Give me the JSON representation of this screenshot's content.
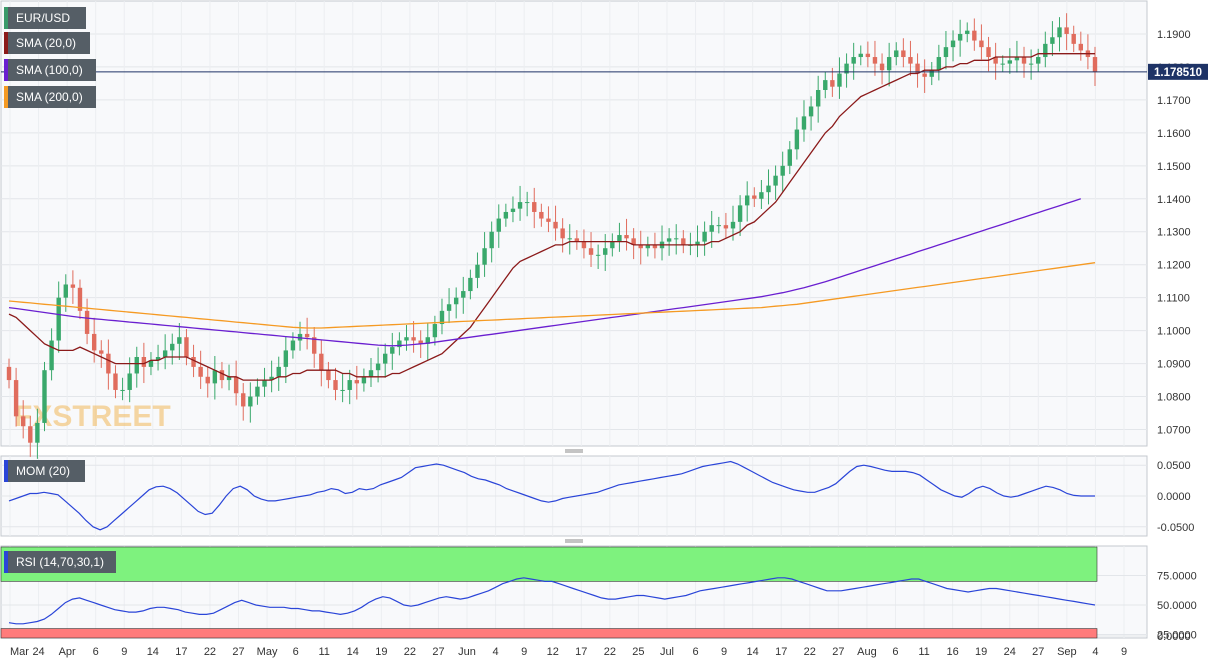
{
  "watermark": "FXSTREET",
  "last_price": "1.178510",
  "colors": {
    "up": "#39a86b",
    "down": "#e06c5d",
    "sma20": "#8b1a1a",
    "sma100": "#6a1fd0",
    "sma200": "#f59a23",
    "mom": "#2a45d8",
    "rsi": "#2a45d8",
    "overbought": "#7ef27e",
    "oversold": "#ff7b7b",
    "price_line": "#1e3366"
  },
  "legend": {
    "pair": "EUR/USD",
    "sma20": "SMA (20,0)",
    "sma100": "SMA (100,0)",
    "sma200": "SMA (200,0)",
    "mom": "MOM (20)",
    "rsi": "RSI (14,70,30,1)"
  },
  "chart_data": [
    {
      "type": "candlestick",
      "title": "EUR/USD",
      "ylim": [
        1.065,
        1.2
      ],
      "y_ticks": [
        "1.0700",
        "1.0800",
        "1.0900",
        "1.1000",
        "1.1100",
        "1.1200",
        "1.1300",
        "1.1400",
        "1.1500",
        "1.1600",
        "1.1700",
        "1.1800",
        "1.1900"
      ],
      "x_ticks": [
        "Mar",
        "24",
        "Apr",
        "6",
        "9",
        "14",
        "17",
        "22",
        "27",
        "May",
        "6",
        "11",
        "14",
        "19",
        "22",
        "27",
        "Jun",
        "4",
        "9",
        "12",
        "17",
        "22",
        "25",
        "Jul",
        "6",
        "9",
        "14",
        "17",
        "22",
        "27",
        "Aug",
        "6",
        "11",
        "16",
        "19",
        "24",
        "27",
        "Sep",
        "4",
        "9"
      ],
      "last_price": 1.17851,
      "close": [
        1.085,
        1.074,
        1.071,
        1.066,
        1.072,
        1.088,
        1.097,
        1.11,
        1.114,
        1.113,
        1.106,
        1.099,
        1.094,
        1.093,
        1.087,
        1.082,
        1.082,
        1.087,
        1.092,
        1.089,
        1.091,
        1.092,
        1.094,
        1.096,
        1.098,
        1.092,
        1.089,
        1.086,
        1.084,
        1.088,
        1.085,
        1.086,
        1.081,
        1.077,
        1.08,
        1.083,
        1.085,
        1.086,
        1.089,
        1.094,
        1.097,
        1.099,
        1.098,
        1.093,
        1.088,
        1.085,
        1.082,
        1.082,
        1.085,
        1.084,
        1.086,
        1.088,
        1.09,
        1.093,
        1.095,
        1.097,
        1.098,
        1.097,
        1.096,
        1.098,
        1.102,
        1.106,
        1.108,
        1.11,
        1.112,
        1.116,
        1.12,
        1.125,
        1.13,
        1.134,
        1.136,
        1.137,
        1.139,
        1.139,
        1.136,
        1.134,
        1.133,
        1.131,
        1.128,
        1.128,
        1.127,
        1.125,
        1.123,
        1.123,
        1.125,
        1.127,
        1.129,
        1.128,
        1.126,
        1.125,
        1.126,
        1.125,
        1.127,
        1.128,
        1.128,
        1.126,
        1.126,
        1.127,
        1.13,
        1.132,
        1.132,
        1.131,
        1.133,
        1.138,
        1.141,
        1.14,
        1.142,
        1.144,
        1.147,
        1.15,
        1.155,
        1.161,
        1.165,
        1.168,
        1.173,
        1.176,
        1.174,
        1.178,
        1.181,
        1.183,
        1.184,
        1.183,
        1.181,
        1.179,
        1.183,
        1.185,
        1.183,
        1.181,
        1.178,
        1.177,
        1.179,
        1.183,
        1.186,
        1.188,
        1.19,
        1.191,
        1.188,
        1.186,
        1.183,
        1.181,
        1.181,
        1.182,
        1.183,
        1.181,
        1.181,
        1.183,
        1.187,
        1.189,
        1.192,
        1.19,
        1.187,
        1.185,
        1.183,
        1.17851
      ],
      "series": [
        {
          "name": "SMA (20,0)",
          "values": [
            1.105,
            1.104,
            1.102,
            1.1,
            1.098,
            1.096,
            1.095,
            1.094,
            1.094,
            1.094,
            1.095,
            1.094,
            1.093,
            1.092,
            1.091,
            1.09,
            1.09,
            1.09,
            1.09,
            1.09,
            1.091,
            1.091,
            1.092,
            1.092,
            1.092,
            1.092,
            1.091,
            1.09,
            1.089,
            1.088,
            1.087,
            1.086,
            1.086,
            1.085,
            1.085,
            1.085,
            1.085,
            1.085,
            1.086,
            1.086,
            1.087,
            1.087,
            1.088,
            1.088,
            1.088,
            1.088,
            1.088,
            1.087,
            1.087,
            1.086,
            1.086,
            1.086,
            1.086,
            1.086,
            1.087,
            1.087,
            1.088,
            1.089,
            1.09,
            1.091,
            1.092,
            1.093,
            1.095,
            1.097,
            1.099,
            1.101,
            1.104,
            1.107,
            1.11,
            1.113,
            1.116,
            1.119,
            1.121,
            1.122,
            1.123,
            1.124,
            1.125,
            1.126,
            1.126,
            1.127,
            1.127,
            1.127,
            1.127,
            1.127,
            1.127,
            1.127,
            1.127,
            1.127,
            1.126,
            1.126,
            1.126,
            1.126,
            1.126,
            1.126,
            1.126,
            1.126,
            1.126,
            1.126,
            1.126,
            1.127,
            1.127,
            1.128,
            1.129,
            1.13,
            1.132,
            1.133,
            1.135,
            1.137,
            1.139,
            1.142,
            1.145,
            1.148,
            1.151,
            1.154,
            1.157,
            1.16,
            1.162,
            1.165,
            1.167,
            1.169,
            1.171,
            1.172,
            1.173,
            1.174,
            1.175,
            1.176,
            1.177,
            1.178,
            1.178,
            1.179,
            1.179,
            1.179,
            1.18,
            1.18,
            1.181,
            1.181,
            1.182,
            1.182,
            1.182,
            1.183,
            1.183,
            1.183,
            1.183,
            1.183,
            1.183,
            1.184,
            1.184,
            1.184,
            1.184,
            1.184,
            1.184,
            1.184,
            1.184,
            1.184
          ]
        },
        {
          "name": "SMA (100,0)",
          "values": [
            1.107,
            1.1067,
            1.1064,
            1.1061,
            1.1058,
            1.1055,
            1.1052,
            1.1049,
            1.1046,
            1.1043,
            1.104,
            1.1038,
            1.1036,
            1.1034,
            1.1032,
            1.103,
            1.1028,
            1.1026,
            1.1024,
            1.1022,
            1.102,
            1.1018,
            1.1016,
            1.1014,
            1.1012,
            1.101,
            1.1008,
            1.1006,
            1.1004,
            1.1002,
            1.1,
            1.0998,
            1.0996,
            1.0994,
            1.0992,
            1.099,
            1.0988,
            1.0986,
            1.0984,
            1.0982,
            1.098,
            1.0978,
            1.0976,
            1.0974,
            1.0972,
            1.097,
            1.0968,
            1.0966,
            1.0964,
            1.0962,
            1.096,
            1.0958,
            1.0956,
            1.0955,
            1.0954,
            1.0955,
            1.0956,
            1.0958,
            1.096,
            1.0962,
            1.0965,
            1.0968,
            1.0971,
            1.0974,
            1.0977,
            1.098,
            1.0983,
            1.0986,
            1.0989,
            1.0992,
            1.0995,
            1.0998,
            1.1001,
            1.1004,
            1.1007,
            1.101,
            1.1013,
            1.1016,
            1.1019,
            1.1022,
            1.1025,
            1.1028,
            1.1031,
            1.1034,
            1.1037,
            1.104,
            1.1043,
            1.1046,
            1.1049,
            1.1052,
            1.1055,
            1.1058,
            1.1061,
            1.1064,
            1.1067,
            1.107,
            1.1073,
            1.1076,
            1.1079,
            1.1082,
            1.1085,
            1.1088,
            1.1091,
            1.1094,
            1.1097,
            1.11,
            1.1103,
            1.1107,
            1.1111,
            1.1115,
            1.112,
            1.1125,
            1.113,
            1.1136,
            1.1142,
            1.1148,
            1.1155,
            1.1162,
            1.1169,
            1.1176,
            1.1183,
            1.119,
            1.1197,
            1.1204,
            1.1211,
            1.1218,
            1.1225,
            1.1232,
            1.1239,
            1.1246,
            1.1253,
            1.126,
            1.1267,
            1.1274,
            1.1281,
            1.1288,
            1.1295,
            1.1302,
            1.1309,
            1.1316,
            1.1323,
            1.133,
            1.1337,
            1.1344,
            1.1351,
            1.1358,
            1.1365,
            1.1372,
            1.1379,
            1.1386,
            1.1393,
            1.14
          ]
        },
        {
          "name": "SMA (200,0)",
          "values": [
            1.109,
            1.1088,
            1.1086,
            1.1084,
            1.1082,
            1.108,
            1.1078,
            1.1076,
            1.1074,
            1.1072,
            1.107,
            1.1068,
            1.1066,
            1.1064,
            1.1062,
            1.106,
            1.1058,
            1.1056,
            1.1054,
            1.1052,
            1.105,
            1.1048,
            1.1046,
            1.1044,
            1.1042,
            1.104,
            1.1038,
            1.1036,
            1.1034,
            1.1032,
            1.103,
            1.1028,
            1.1026,
            1.1024,
            1.1022,
            1.102,
            1.1018,
            1.1016,
            1.1014,
            1.1012,
            1.101,
            1.1009,
            1.1008,
            1.1008,
            1.1008,
            1.1009,
            1.101,
            1.1011,
            1.1012,
            1.1013,
            1.1014,
            1.1015,
            1.1016,
            1.1017,
            1.1018,
            1.1019,
            1.102,
            1.1021,
            1.1022,
            1.1023,
            1.1024,
            1.1025,
            1.1026,
            1.1027,
            1.1028,
            1.1029,
            1.103,
            1.1031,
            1.1032,
            1.1033,
            1.1034,
            1.1035,
            1.1036,
            1.1037,
            1.1038,
            1.1039,
            1.104,
            1.1041,
            1.1042,
            1.1043,
            1.1044,
            1.1045,
            1.1046,
            1.1047,
            1.1048,
            1.1049,
            1.105,
            1.1051,
            1.1052,
            1.1053,
            1.1054,
            1.1055,
            1.1056,
            1.1057,
            1.1058,
            1.1059,
            1.106,
            1.1061,
            1.1062,
            1.1063,
            1.1064,
            1.1065,
            1.1066,
            1.1067,
            1.1068,
            1.1069,
            1.107,
            1.1072,
            1.1074,
            1.1076,
            1.1078,
            1.108,
            1.1083,
            1.1086,
            1.1089,
            1.1092,
            1.1095,
            1.1098,
            1.1101,
            1.1104,
            1.1107,
            1.111,
            1.1113,
            1.1116,
            1.1119,
            1.1122,
            1.1125,
            1.1128,
            1.1131,
            1.1134,
            1.1137,
            1.114,
            1.1143,
            1.1146,
            1.1149,
            1.1152,
            1.1155,
            1.1158,
            1.1161,
            1.1164,
            1.1167,
            1.117,
            1.1173,
            1.1176,
            1.1179,
            1.1182,
            1.1185,
            1.1188,
            1.1191,
            1.1194,
            1.1197,
            1.12,
            1.1203,
            1.1206
          ]
        }
      ]
    },
    {
      "type": "line",
      "title": "MOM (20)",
      "ylim": [
        -0.065,
        0.065
      ],
      "y_ticks": [
        "0.0500",
        "0.0000",
        "-0.0500"
      ],
      "series": [
        {
          "name": "MOM (20)",
          "values": [
            -0.008,
            -0.004,
            0.0,
            0.004,
            0.004,
            0.006,
            0.004,
            0.002,
            -0.008,
            -0.018,
            -0.028,
            -0.04,
            -0.05,
            -0.055,
            -0.05,
            -0.04,
            -0.03,
            -0.02,
            -0.01,
            0.0,
            0.01,
            0.015,
            0.016,
            0.012,
            0.005,
            -0.005,
            -0.015,
            -0.025,
            -0.03,
            -0.028,
            -0.015,
            0.0,
            0.012,
            0.016,
            0.01,
            0.0,
            -0.005,
            -0.008,
            -0.008,
            -0.006,
            -0.004,
            -0.002,
            0.0,
            0.002,
            0.006,
            0.008,
            0.012,
            0.01,
            0.004,
            0.006,
            0.012,
            0.01,
            0.012,
            0.018,
            0.022,
            0.026,
            0.03,
            0.038,
            0.046,
            0.048,
            0.05,
            0.052,
            0.05,
            0.046,
            0.042,
            0.038,
            0.032,
            0.028,
            0.026,
            0.022,
            0.018,
            0.012,
            0.008,
            0.004,
            0.0,
            -0.004,
            -0.008,
            -0.01,
            -0.008,
            -0.004,
            -0.002,
            0.0,
            0.002,
            0.004,
            0.006,
            0.01,
            0.014,
            0.018,
            0.02,
            0.022,
            0.024,
            0.026,
            0.028,
            0.03,
            0.032,
            0.034,
            0.036,
            0.04,
            0.044,
            0.048,
            0.05,
            0.052,
            0.054,
            0.056,
            0.052,
            0.046,
            0.04,
            0.034,
            0.028,
            0.022,
            0.018,
            0.014,
            0.01,
            0.008,
            0.006,
            0.006,
            0.01,
            0.014,
            0.02,
            0.03,
            0.04,
            0.048,
            0.05,
            0.048,
            0.045,
            0.042,
            0.04,
            0.04,
            0.04,
            0.038,
            0.034,
            0.026,
            0.018,
            0.01,
            0.005,
            0.0,
            -0.002,
            0.004,
            0.012,
            0.016,
            0.012,
            0.005,
            0.0,
            -0.002,
            0.0,
            0.004,
            0.008,
            0.012,
            0.016,
            0.014,
            0.01,
            0.004,
            0.001,
            0.0,
            0.0,
            0.0
          ]
        }
      ]
    },
    {
      "type": "line",
      "title": "RSI (14,70,30,1)",
      "ylim": [
        22,
        100
      ],
      "y_ticks": [
        "75.0000",
        "50.0000",
        "25.0000",
        "0.0000"
      ],
      "series": [
        {
          "name": "RSI (14,70,30,1)",
          "values": [
            35,
            34,
            34,
            35,
            36,
            38,
            42,
            47,
            52,
            55,
            56,
            54,
            52,
            50,
            48,
            46,
            45,
            44,
            44,
            45,
            47,
            48,
            48,
            47,
            46,
            44,
            43,
            42,
            42,
            43,
            46,
            49,
            52,
            54,
            52,
            50,
            49,
            48,
            48,
            48,
            47,
            47,
            46,
            45,
            45,
            44,
            43,
            42,
            43,
            45,
            48,
            52,
            55,
            57,
            56,
            53,
            50,
            49,
            50,
            52,
            54,
            56,
            57,
            56,
            55,
            56,
            58,
            60,
            62,
            65,
            68,
            70,
            72,
            73,
            72,
            71,
            70,
            70,
            68,
            66,
            64,
            62,
            60,
            58,
            56,
            55,
            55,
            56,
            57,
            58,
            58,
            57,
            56,
            55,
            56,
            57,
            58,
            60,
            62,
            63,
            64,
            65,
            66,
            67,
            68,
            69,
            70,
            71,
            72,
            73,
            73,
            72,
            70,
            68,
            66,
            64,
            62,
            62,
            62,
            63,
            64,
            65,
            66,
            67,
            68,
            69,
            70,
            71,
            72,
            72,
            70,
            68,
            66,
            64,
            63,
            62,
            61,
            62,
            63,
            64,
            64,
            63,
            62,
            61,
            60,
            59,
            58,
            57,
            56,
            55,
            54,
            53,
            52,
            51,
            50
          ]
        }
      ]
    }
  ]
}
